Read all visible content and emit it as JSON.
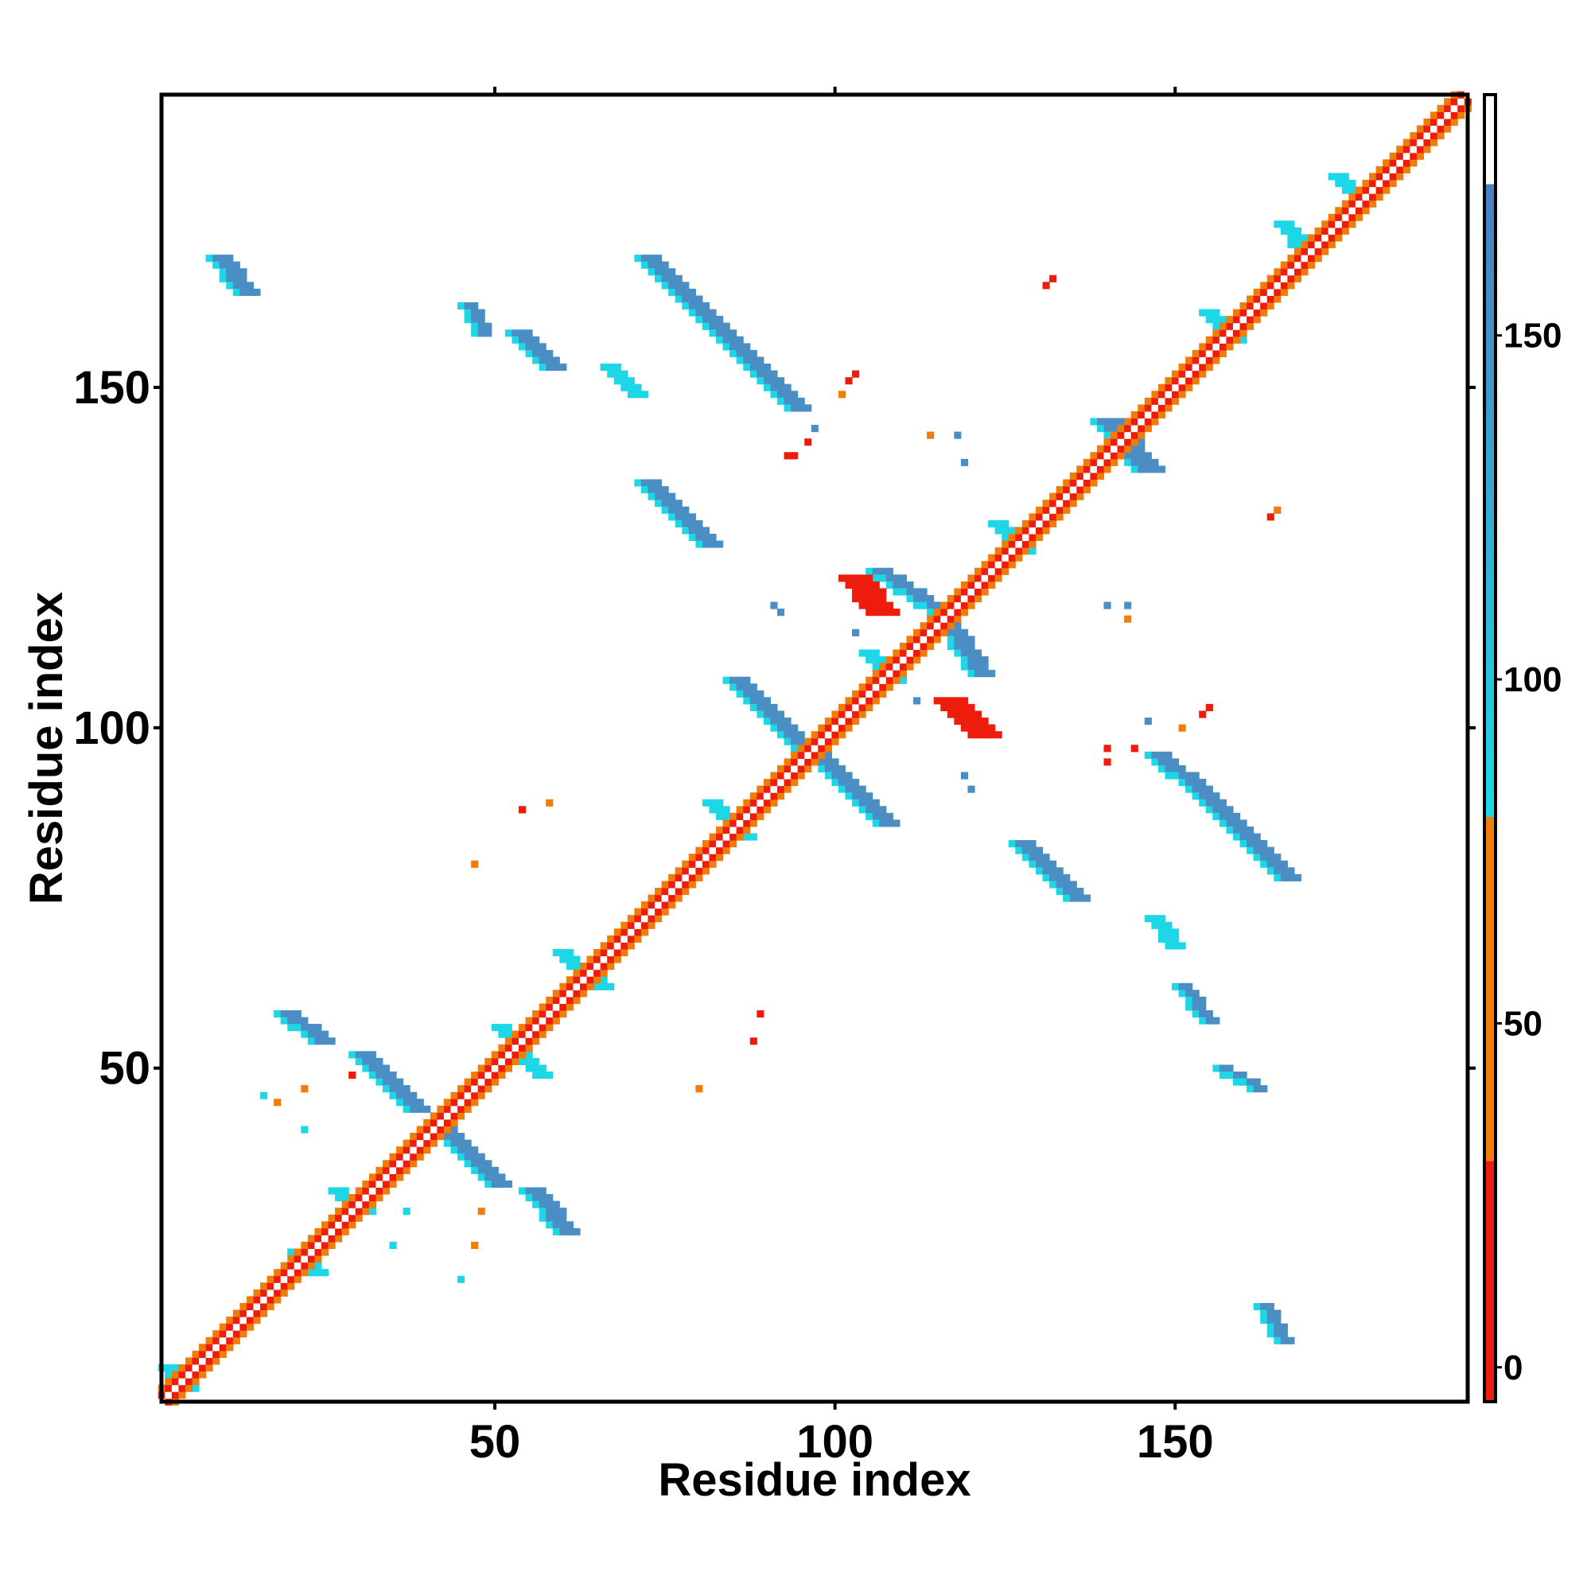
{
  "chart_data": {
    "type": "heatmap",
    "title": "",
    "xlabel": "Residue index",
    "ylabel": "Residue index",
    "xlim": [
      1,
      193
    ],
    "ylim": [
      1,
      193
    ],
    "x_ticks": [
      50,
      100,
      150
    ],
    "y_ticks": [
      50,
      100,
      150
    ],
    "grid": false,
    "legend_placement": "right",
    "colorbar": {
      "range": [
        -5,
        185
      ],
      "ticks": [
        0,
        50,
        100,
        150
      ],
      "bands": [
        {
          "from": -5,
          "to": 30,
          "color": "#ee1c0c"
        },
        {
          "from": 30,
          "to": 80,
          "color": "#f07d0a"
        },
        {
          "from": 80,
          "to": 172,
          "color": "#1ed7e6"
        },
        {
          "from": 172,
          "to": 185,
          "color": "#ffffff"
        }
      ],
      "gradient_from": "#1ed7e6",
      "gradient_to": "#4a7fbf"
    },
    "colors": {
      "red": "#ee1c0c",
      "orange": "#f07d0a",
      "cyan": "#1ed7e6",
      "blue": "#4a8ec4",
      "steel": "#4a7fbf"
    },
    "diagonal": {
      "start": 1,
      "end": 193,
      "pattern": [
        "orange",
        "red",
        "white",
        "red",
        "orange"
      ]
    },
    "stripes": [
      {
        "x1": 10,
        "y1": 169,
        "x2": 14,
        "y2": 164,
        "color": "blue",
        "w": 4
      },
      {
        "x1": 46,
        "y1": 162,
        "x2": 48,
        "y2": 158,
        "color": "blue",
        "w": 3
      },
      {
        "x1": 54,
        "y1": 158,
        "x2": 59,
        "y2": 153,
        "color": "blue",
        "w": 4
      },
      {
        "x1": 67,
        "y1": 153,
        "x2": 71,
        "y2": 149,
        "color": "cyan",
        "w": 3
      },
      {
        "x1": 73,
        "y1": 169,
        "x2": 83,
        "y2": 159,
        "color": "blue",
        "w": 4
      },
      {
        "x1": 82,
        "y1": 160,
        "x2": 95,
        "y2": 147,
        "color": "blue",
        "w": 4
      },
      {
        "x1": 73,
        "y1": 136,
        "x2": 82,
        "y2": 127,
        "color": "blue",
        "w": 4
      },
      {
        "x1": 86,
        "y1": 107,
        "x2": 97,
        "y2": 96,
        "color": "blue",
        "w": 4
      },
      {
        "x1": 98,
        "y1": 96,
        "x2": 108,
        "y2": 86,
        "color": "blue",
        "w": 4
      },
      {
        "x1": 107,
        "y1": 123,
        "x2": 116,
        "y2": 117,
        "color": "blue",
        "w": 4
      },
      {
        "x1": 116,
        "y1": 117,
        "x2": 122,
        "y2": 108,
        "color": "blue",
        "w": 4
      },
      {
        "x1": 20,
        "y1": 58,
        "x2": 25,
        "y2": 54,
        "color": "blue",
        "w": 4
      },
      {
        "x1": 31,
        "y1": 52,
        "x2": 39,
        "y2": 44,
        "color": "blue",
        "w": 4
      },
      {
        "x1": 42,
        "y1": 42,
        "x2": 51,
        "y2": 33,
        "color": "blue",
        "w": 4
      },
      {
        "x1": 56,
        "y1": 32,
        "x2": 61,
        "y2": 26,
        "color": "blue",
        "w": 4
      },
      {
        "x1": 128,
        "y1": 83,
        "x2": 136,
        "y2": 75,
        "color": "blue",
        "w": 4
      },
      {
        "x1": 148,
        "y1": 96,
        "x2": 156,
        "y2": 89,
        "color": "blue",
        "w": 4
      },
      {
        "x1": 157,
        "y1": 88,
        "x2": 167,
        "y2": 78,
        "color": "blue",
        "w": 4
      },
      {
        "x1": 147,
        "y1": 72,
        "x2": 150,
        "y2": 68,
        "color": "cyan",
        "w": 3
      },
      {
        "x1": 151,
        "y1": 62,
        "x2": 155,
        "y2": 57,
        "color": "blue",
        "w": 3
      },
      {
        "x1": 157,
        "y1": 50,
        "x2": 162,
        "y2": 47,
        "color": "blue",
        "w": 3
      },
      {
        "x1": 163,
        "y1": 15,
        "x2": 166,
        "y2": 10,
        "color": "blue",
        "w": 3
      },
      {
        "x1": 103,
        "y1": 122,
        "x2": 107,
        "y2": 117,
        "color": "red",
        "w": 5
      },
      {
        "x1": 117,
        "y1": 104,
        "x2": 122,
        "y2": 99,
        "color": "red",
        "w": 5
      },
      {
        "x1": 140,
        "y1": 145,
        "x2": 146,
        "y2": 138,
        "color": "blue",
        "w": 5
      },
      {
        "x1": 21,
        "y1": 23,
        "x2": 24,
        "y2": 20,
        "color": "cyan",
        "w": 3
      },
      {
        "x1": 27,
        "y1": 32,
        "x2": 31,
        "y2": 29,
        "color": "cyan",
        "w": 3
      },
      {
        "x1": 51,
        "y1": 56,
        "x2": 57,
        "y2": 49,
        "color": "cyan",
        "w": 3
      },
      {
        "x1": 60,
        "y1": 67,
        "x2": 66,
        "y2": 62,
        "color": "cyan",
        "w": 3
      },
      {
        "x1": 82,
        "y1": 89,
        "x2": 87,
        "y2": 84,
        "color": "cyan",
        "w": 3
      },
      {
        "x1": 124,
        "y1": 130,
        "x2": 128,
        "y2": 126,
        "color": "cyan",
        "w": 3
      },
      {
        "x1": 155,
        "y1": 161,
        "x2": 159,
        "y2": 157,
        "color": "cyan",
        "w": 3
      },
      {
        "x1": 166,
        "y1": 174,
        "x2": 170,
        "y2": 169,
        "color": "cyan",
        "w": 3
      },
      {
        "x1": 174,
        "y1": 181,
        "x2": 178,
        "y2": 177,
        "color": "cyan",
        "w": 3
      },
      {
        "x1": 2,
        "y1": 6,
        "x2": 5,
        "y2": 3,
        "color": "cyan",
        "w": 3
      },
      {
        "x1": 105,
        "y1": 111,
        "x2": 109,
        "y2": 107,
        "color": "cyan",
        "w": 3
      }
    ],
    "points": [
      {
        "x": 96,
        "y": 142,
        "color": "red"
      },
      {
        "x": 94,
        "y": 140,
        "color": "red"
      },
      {
        "x": 93,
        "y": 140,
        "color": "red"
      },
      {
        "x": 97,
        "y": 144,
        "color": "blue"
      },
      {
        "x": 102,
        "y": 151,
        "color": "red"
      },
      {
        "x": 103,
        "y": 152,
        "color": "red"
      },
      {
        "x": 101,
        "y": 149,
        "color": "orange"
      },
      {
        "x": 114,
        "y": 143,
        "color": "orange"
      },
      {
        "x": 118,
        "y": 143,
        "color": "blue"
      },
      {
        "x": 119,
        "y": 139,
        "color": "blue"
      },
      {
        "x": 132,
        "y": 166,
        "color": "red"
      },
      {
        "x": 131,
        "y": 165,
        "color": "red"
      },
      {
        "x": 165,
        "y": 132,
        "color": "orange"
      },
      {
        "x": 164,
        "y": 131,
        "color": "red"
      },
      {
        "x": 91,
        "y": 118,
        "color": "blue"
      },
      {
        "x": 92,
        "y": 117,
        "color": "blue"
      },
      {
        "x": 103,
        "y": 114,
        "color": "blue"
      },
      {
        "x": 112,
        "y": 104,
        "color": "blue"
      },
      {
        "x": 140,
        "y": 118,
        "color": "blue"
      },
      {
        "x": 143,
        "y": 118,
        "color": "blue"
      },
      {
        "x": 143,
        "y": 116,
        "color": "orange"
      },
      {
        "x": 155,
        "y": 103,
        "color": "red"
      },
      {
        "x": 154,
        "y": 102,
        "color": "red"
      },
      {
        "x": 151,
        "y": 100,
        "color": "orange"
      },
      {
        "x": 146,
        "y": 101,
        "color": "blue"
      },
      {
        "x": 140,
        "y": 97,
        "color": "red"
      },
      {
        "x": 144,
        "y": 97,
        "color": "red"
      },
      {
        "x": 140,
        "y": 95,
        "color": "red"
      },
      {
        "x": 119,
        "y": 93,
        "color": "blue"
      },
      {
        "x": 120,
        "y": 91,
        "color": "blue"
      },
      {
        "x": 54,
        "y": 88,
        "color": "red"
      },
      {
        "x": 58,
        "y": 89,
        "color": "orange"
      },
      {
        "x": 47,
        "y": 80,
        "color": "orange"
      },
      {
        "x": 89,
        "y": 58,
        "color": "red"
      },
      {
        "x": 88,
        "y": 54,
        "color": "red"
      },
      {
        "x": 80,
        "y": 47,
        "color": "orange"
      },
      {
        "x": 29,
        "y": 49,
        "color": "red"
      },
      {
        "x": 16,
        "y": 46,
        "color": "cyan"
      },
      {
        "x": 18,
        "y": 45,
        "color": "orange"
      },
      {
        "x": 22,
        "y": 47,
        "color": "orange"
      },
      {
        "x": 22,
        "y": 41,
        "color": "cyan"
      },
      {
        "x": 48,
        "y": 29,
        "color": "orange"
      },
      {
        "x": 47,
        "y": 24,
        "color": "orange"
      },
      {
        "x": 45,
        "y": 19,
        "color": "cyan"
      },
      {
        "x": 35,
        "y": 24,
        "color": "cyan"
      },
      {
        "x": 37,
        "y": 29,
        "color": "cyan"
      }
    ]
  }
}
